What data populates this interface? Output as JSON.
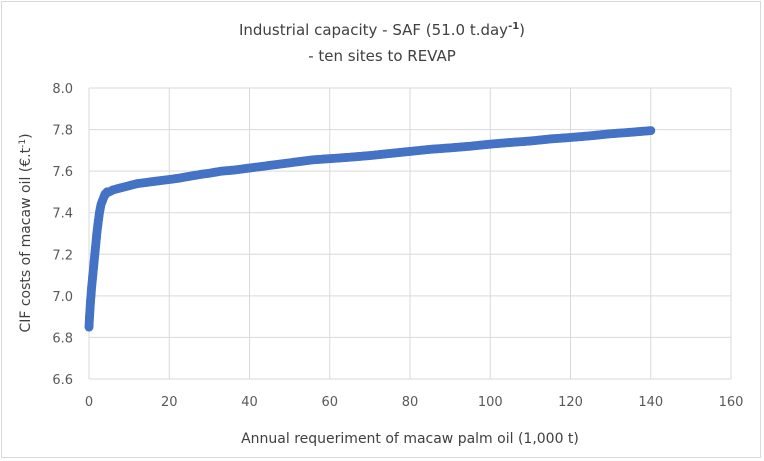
{
  "chart_data": {
    "type": "scatter",
    "title": {
      "line1_main": "Industrial capacity - SAF (51.0 t.day",
      "line1_sup": "-1",
      "line1_end": ")",
      "line2": "- ten sites to REVAP"
    },
    "xlabel": "Annual requeriment of macaw palm oil (1,000 t)",
    "ylabel": {
      "main": "CIF costs of macaw oil (€.t",
      "sup": "-1",
      "end": ")"
    },
    "xlim": [
      0,
      160
    ],
    "ylim": [
      6.6,
      8.0
    ],
    "xticks": [
      "0",
      "20",
      "40",
      "60",
      "80",
      "100",
      "120",
      "140",
      "160"
    ],
    "yticks": [
      "6.6",
      "6.8",
      "7.0",
      "7.2",
      "7.4",
      "7.6",
      "7.8",
      "8.0"
    ],
    "grid": true,
    "marker_color": "#4472c4",
    "series": [
      {
        "x": [
          0.0,
          0.05,
          0.1,
          0.2,
          0.3,
          0.4,
          0.5,
          0.6,
          0.8,
          1.0,
          1.2,
          1.4,
          1.6,
          1.8,
          2.0,
          2.2,
          2.4,
          2.6,
          2.8,
          3.0,
          3.2,
          3.4,
          3.6,
          3.8,
          4.0,
          4.2,
          4.5,
          5,
          6,
          7,
          8,
          9,
          10,
          12,
          14,
          16,
          18,
          20,
          22,
          25,
          28,
          30,
          33,
          36,
          40,
          44,
          48,
          52,
          56,
          60,
          65,
          70,
          75,
          80,
          85,
          90,
          95,
          100,
          105,
          110,
          115,
          120,
          125,
          130,
          135,
          140
        ],
        "y": [
          6.85,
          6.87,
          6.89,
          6.92,
          6.95,
          6.98,
          7.0,
          7.03,
          7.07,
          7.11,
          7.15,
          7.19,
          7.23,
          7.27,
          7.31,
          7.34,
          7.37,
          7.4,
          7.42,
          7.44,
          7.45,
          7.46,
          7.47,
          7.48,
          7.49,
          7.49,
          7.5,
          7.5,
          7.51,
          7.515,
          7.52,
          7.525,
          7.53,
          7.54,
          7.545,
          7.55,
          7.555,
          7.56,
          7.565,
          7.575,
          7.585,
          7.59,
          7.6,
          7.605,
          7.615,
          7.625,
          7.635,
          7.645,
          7.655,
          7.66,
          7.667,
          7.675,
          7.685,
          7.695,
          7.705,
          7.712,
          7.72,
          7.73,
          7.738,
          7.745,
          7.755,
          7.762,
          7.77,
          7.78,
          7.787,
          7.795
        ]
      }
    ]
  }
}
